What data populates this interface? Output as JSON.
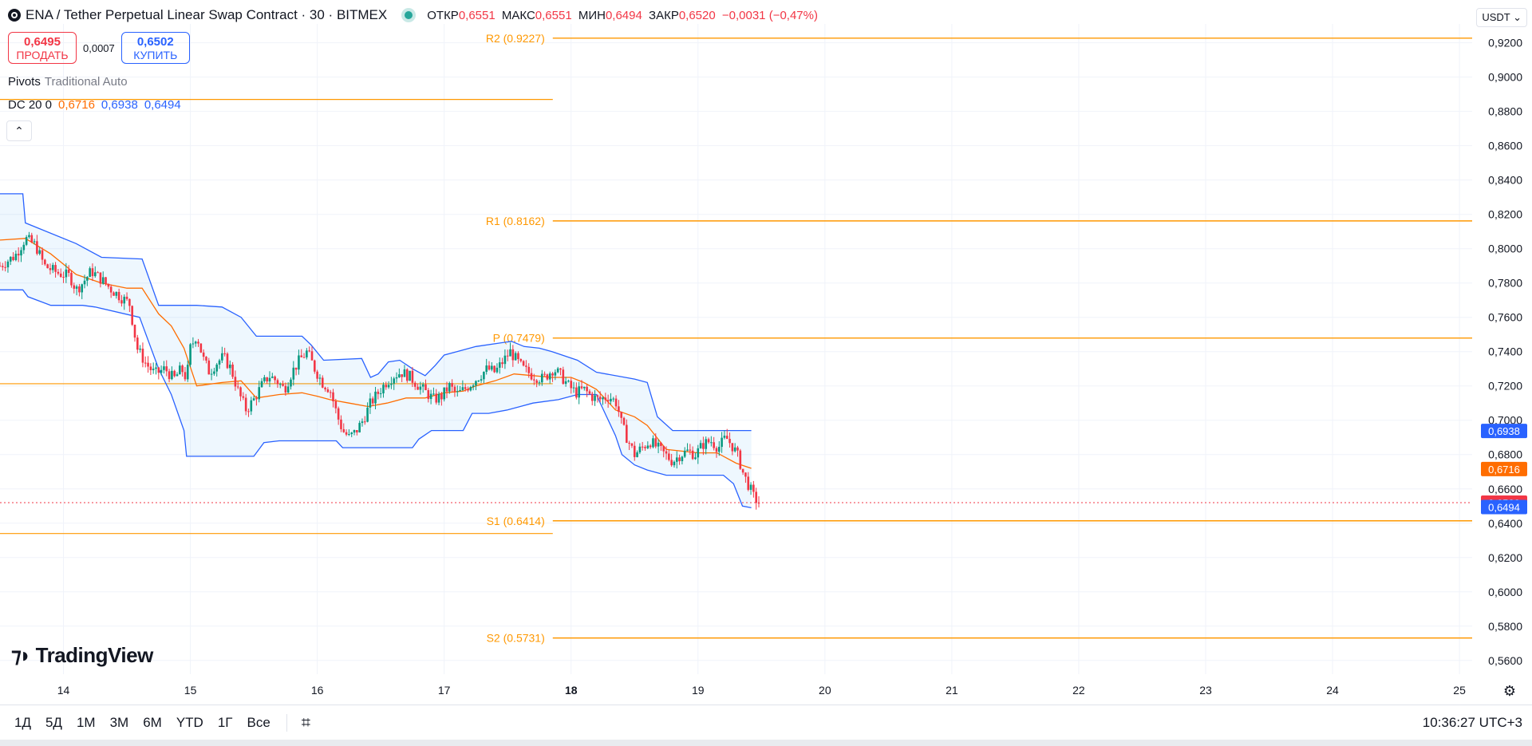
{
  "header": {
    "symbol_title": "ENA / Tether Perpetual Linear Swap Contract · 30 · BITMEX",
    "ohlc": [
      {
        "key": "ОТКР",
        "value": "0,6551"
      },
      {
        "key": "МАКС",
        "value": "0,6551"
      },
      {
        "key": "МИН",
        "value": "0,6494"
      },
      {
        "key": "ЗАКР",
        "value": "0,6520"
      }
    ],
    "change": "−0,0031 (−0,47%)",
    "currency": "USDT"
  },
  "trade": {
    "sell_price": "0,6495",
    "sell_label": "ПРОДАТЬ",
    "spread": "0,0007",
    "buy_price": "0,6502",
    "buy_label": "КУПИТЬ"
  },
  "indicators": {
    "pivots_name": "Pivots",
    "pivots_params": "Traditional Auto",
    "dc_name": "DC 20 0",
    "dc_mid": "0,6716",
    "dc_upper": "0,6938",
    "dc_lower": "0,6494"
  },
  "brand": "TradingView",
  "periods": [
    "1Д",
    "5Д",
    "1М",
    "3М",
    "6М",
    "YTD",
    "1Г",
    "Все"
  ],
  "clock": "10:36:27 UTC+3",
  "chart_data": {
    "type": "candlestick",
    "interval": "30",
    "y_range": [
      0.552,
      0.931
    ],
    "x_range": [
      13.5,
      25.1
    ],
    "y_ticks": [
      "0,5600",
      "0,5800",
      "0,6000",
      "0,6200",
      "0,6400",
      "0,6600",
      "0,6800",
      "0,7000",
      "0,7200",
      "0,7400",
      "0,7600",
      "0,7800",
      "0,8000",
      "0,8200",
      "0,8400",
      "0,8600",
      "0,8800",
      "0,9000",
      "0,9200"
    ],
    "x_ticks": [
      {
        "day": 14,
        "label": "14"
      },
      {
        "day": 15,
        "label": "15"
      },
      {
        "day": 16,
        "label": "16"
      },
      {
        "day": 17,
        "label": "17"
      },
      {
        "day": 18,
        "label": "18",
        "bold": true
      },
      {
        "day": 19,
        "label": "19"
      },
      {
        "day": 20,
        "label": "20"
      },
      {
        "day": 21,
        "label": "21"
      },
      {
        "day": 22,
        "label": "22"
      },
      {
        "day": 23,
        "label": "23"
      },
      {
        "day": 24,
        "label": "24"
      },
      {
        "day": 25,
        "label": "25"
      }
    ],
    "pivots": [
      {
        "name": "R2",
        "label": "R2 (0.9227)",
        "value": 0.9227
      },
      {
        "name": "R1",
        "label": "R1 (0.8162)",
        "value": 0.8162
      },
      {
        "name": "P",
        "label": "P (0.7479)",
        "value": 0.7479
      },
      {
        "name": "S1",
        "label": "S1 (0.6414)",
        "value": 0.6414
      },
      {
        "name": "S2",
        "label": "S2 (0.5731)",
        "value": 0.5731
      }
    ],
    "prev_pivots": [
      {
        "value": 0.887
      },
      {
        "value": 0.7213
      },
      {
        "value": 0.634
      }
    ],
    "last_price": {
      "value": 0.652,
      "label": "0,6520"
    },
    "price_labels": [
      {
        "value": 0.6938,
        "label": "0,6938",
        "color": "#2962ff"
      },
      {
        "value": 0.6716,
        "label": "0,6716",
        "color": "#ff6d00"
      },
      {
        "value": 0.652,
        "label": "0,6520",
        "color": "#f23645"
      },
      {
        "value": 0.6494,
        "label": "0,6494",
        "color": "#2962ff"
      }
    ],
    "donchian_upper": [
      [
        13.5,
        0.832
      ],
      [
        13.68,
        0.832
      ],
      [
        13.7,
        0.815
      ],
      [
        14.1,
        0.803
      ],
      [
        14.3,
        0.795
      ],
      [
        14.62,
        0.794
      ],
      [
        14.75,
        0.767
      ],
      [
        15.05,
        0.767
      ],
      [
        15.25,
        0.766
      ],
      [
        15.4,
        0.76
      ],
      [
        15.52,
        0.749
      ],
      [
        15.88,
        0.749
      ],
      [
        15.95,
        0.744
      ],
      [
        16.05,
        0.735
      ],
      [
        16.35,
        0.736
      ],
      [
        16.42,
        0.725
      ],
      [
        16.48,
        0.727
      ],
      [
        16.56,
        0.734
      ],
      [
        16.65,
        0.735
      ],
      [
        16.75,
        0.73
      ],
      [
        16.85,
        0.726
      ],
      [
        16.93,
        0.732
      ],
      [
        17.0,
        0.738
      ],
      [
        17.1,
        0.74
      ],
      [
        17.25,
        0.743
      ],
      [
        17.53,
        0.746
      ],
      [
        17.63,
        0.743
      ],
      [
        17.75,
        0.742
      ],
      [
        17.85,
        0.74
      ],
      [
        18.05,
        0.735
      ],
      [
        18.2,
        0.728
      ],
      [
        18.5,
        0.724
      ],
      [
        18.6,
        0.722
      ],
      [
        18.68,
        0.702
      ],
      [
        18.8,
        0.694
      ],
      [
        19.3,
        0.694
      ],
      [
        19.42,
        0.694
      ]
    ],
    "donchian_lower": [
      [
        13.5,
        0.776
      ],
      [
        13.68,
        0.776
      ],
      [
        13.72,
        0.772
      ],
      [
        13.9,
        0.767
      ],
      [
        14.15,
        0.767
      ],
      [
        14.25,
        0.766
      ],
      [
        14.6,
        0.76
      ],
      [
        14.75,
        0.73
      ],
      [
        14.85,
        0.715
      ],
      [
        14.95,
        0.694
      ],
      [
        14.97,
        0.679
      ],
      [
        15.05,
        0.679
      ],
      [
        15.5,
        0.679
      ],
      [
        15.58,
        0.687
      ],
      [
        15.7,
        0.688
      ],
      [
        16.15,
        0.688
      ],
      [
        16.2,
        0.684
      ],
      [
        16.3,
        0.684
      ],
      [
        16.75,
        0.684
      ],
      [
        16.8,
        0.689
      ],
      [
        16.9,
        0.694
      ],
      [
        17.15,
        0.694
      ],
      [
        17.22,
        0.704
      ],
      [
        17.35,
        0.704
      ],
      [
        17.5,
        0.706
      ],
      [
        17.7,
        0.71
      ],
      [
        17.9,
        0.712
      ],
      [
        18.05,
        0.715
      ],
      [
        18.2,
        0.715
      ],
      [
        18.23,
        0.71
      ],
      [
        18.35,
        0.691
      ],
      [
        18.4,
        0.68
      ],
      [
        18.5,
        0.674
      ],
      [
        18.6,
        0.671
      ],
      [
        18.75,
        0.668
      ],
      [
        19.1,
        0.668
      ],
      [
        19.2,
        0.668
      ],
      [
        19.28,
        0.663
      ],
      [
        19.35,
        0.65
      ],
      [
        19.42,
        0.649
      ]
    ],
    "donchian_mid": [
      [
        13.5,
        0.805
      ],
      [
        13.7,
        0.806
      ],
      [
        13.9,
        0.797
      ],
      [
        14.1,
        0.785
      ],
      [
        14.3,
        0.78
      ],
      [
        14.5,
        0.777
      ],
      [
        14.62,
        0.777
      ],
      [
        14.75,
        0.762
      ],
      [
        14.85,
        0.755
      ],
      [
        14.95,
        0.742
      ],
      [
        15.05,
        0.72
      ],
      [
        15.25,
        0.722
      ],
      [
        15.4,
        0.723
      ],
      [
        15.52,
        0.713
      ],
      [
        15.7,
        0.715
      ],
      [
        15.88,
        0.716
      ],
      [
        16.0,
        0.714
      ],
      [
        16.1,
        0.712
      ],
      [
        16.25,
        0.71
      ],
      [
        16.4,
        0.708
      ],
      [
        16.55,
        0.71
      ],
      [
        16.7,
        0.713
      ],
      [
        16.85,
        0.713
      ],
      [
        17.0,
        0.716
      ],
      [
        17.15,
        0.717
      ],
      [
        17.25,
        0.72
      ],
      [
        17.4,
        0.723
      ],
      [
        17.55,
        0.727
      ],
      [
        17.7,
        0.726
      ],
      [
        17.85,
        0.725
      ],
      [
        18.0,
        0.725
      ],
      [
        18.1,
        0.722
      ],
      [
        18.2,
        0.718
      ],
      [
        18.35,
        0.706
      ],
      [
        18.5,
        0.702
      ],
      [
        18.6,
        0.697
      ],
      [
        18.75,
        0.683
      ],
      [
        19.0,
        0.681
      ],
      [
        19.15,
        0.681
      ],
      [
        19.3,
        0.675
      ],
      [
        19.42,
        0.672
      ]
    ],
    "close_path": [
      [
        13.5,
        0.79
      ],
      [
        13.62,
        0.796
      ],
      [
        13.7,
        0.806
      ],
      [
        13.78,
        0.802
      ],
      [
        13.85,
        0.79
      ],
      [
        13.95,
        0.786
      ],
      [
        14.05,
        0.784
      ],
      [
        14.1,
        0.776
      ],
      [
        14.15,
        0.78
      ],
      [
        14.22,
        0.787
      ],
      [
        14.3,
        0.782
      ],
      [
        14.38,
        0.776
      ],
      [
        14.45,
        0.772
      ],
      [
        14.52,
        0.768
      ],
      [
        14.58,
        0.742
      ],
      [
        14.65,
        0.733
      ],
      [
        14.72,
        0.727
      ],
      [
        14.8,
        0.73
      ],
      [
        14.87,
        0.724
      ],
      [
        14.93,
        0.73
      ],
      [
        14.97,
        0.724
      ],
      [
        15.0,
        0.742
      ],
      [
        15.05,
        0.75
      ],
      [
        15.1,
        0.736
      ],
      [
        15.15,
        0.728
      ],
      [
        15.2,
        0.733
      ],
      [
        15.26,
        0.737
      ],
      [
        15.32,
        0.73
      ],
      [
        15.38,
        0.716
      ],
      [
        15.44,
        0.706
      ],
      [
        15.5,
        0.712
      ],
      [
        15.56,
        0.72
      ],
      [
        15.62,
        0.726
      ],
      [
        15.68,
        0.723
      ],
      [
        15.74,
        0.718
      ],
      [
        15.8,
        0.728
      ],
      [
        15.86,
        0.735
      ],
      [
        15.92,
        0.74
      ],
      [
        15.98,
        0.73
      ],
      [
        16.04,
        0.722
      ],
      [
        16.1,
        0.718
      ],
      [
        16.16,
        0.702
      ],
      [
        16.2,
        0.694
      ],
      [
        16.25,
        0.69
      ],
      [
        16.3,
        0.693
      ],
      [
        16.36,
        0.7
      ],
      [
        16.42,
        0.71
      ],
      [
        16.48,
        0.716
      ],
      [
        16.54,
        0.722
      ],
      [
        16.6,
        0.726
      ],
      [
        16.66,
        0.728
      ],
      [
        16.72,
        0.726
      ],
      [
        16.8,
        0.72
      ],
      [
        16.86,
        0.716
      ],
      [
        16.92,
        0.712
      ],
      [
        16.98,
        0.714
      ],
      [
        17.04,
        0.72
      ],
      [
        17.1,
        0.715
      ],
      [
        17.16,
        0.718
      ],
      [
        17.22,
        0.722
      ],
      [
        17.28,
        0.726
      ],
      [
        17.34,
        0.73
      ],
      [
        17.4,
        0.728
      ],
      [
        17.46,
        0.734
      ],
      [
        17.52,
        0.74
      ],
      [
        17.57,
        0.735
      ],
      [
        17.62,
        0.73
      ],
      [
        17.7,
        0.726
      ],
      [
        17.78,
        0.724
      ],
      [
        17.86,
        0.73
      ],
      [
        17.92,
        0.726
      ],
      [
        17.98,
        0.72
      ],
      [
        18.04,
        0.716
      ],
      [
        18.1,
        0.718
      ],
      [
        18.16,
        0.714
      ],
      [
        18.22,
        0.712
      ],
      [
        18.3,
        0.714
      ],
      [
        18.36,
        0.71
      ],
      [
        18.4,
        0.697
      ],
      [
        18.45,
        0.688
      ],
      [
        18.5,
        0.68
      ],
      [
        18.56,
        0.684
      ],
      [
        18.62,
        0.688
      ],
      [
        18.68,
        0.684
      ],
      [
        18.74,
        0.68
      ],
      [
        18.8,
        0.676
      ],
      [
        18.86,
        0.68
      ],
      [
        18.92,
        0.682
      ],
      [
        18.98,
        0.68
      ],
      [
        19.04,
        0.686
      ],
      [
        19.1,
        0.688
      ],
      [
        19.16,
        0.684
      ],
      [
        19.22,
        0.69
      ],
      [
        19.28,
        0.684
      ],
      [
        19.32,
        0.678
      ],
      [
        19.36,
        0.668
      ],
      [
        19.4,
        0.662
      ],
      [
        19.44,
        0.655
      ],
      [
        19.48,
        0.652
      ]
    ]
  }
}
